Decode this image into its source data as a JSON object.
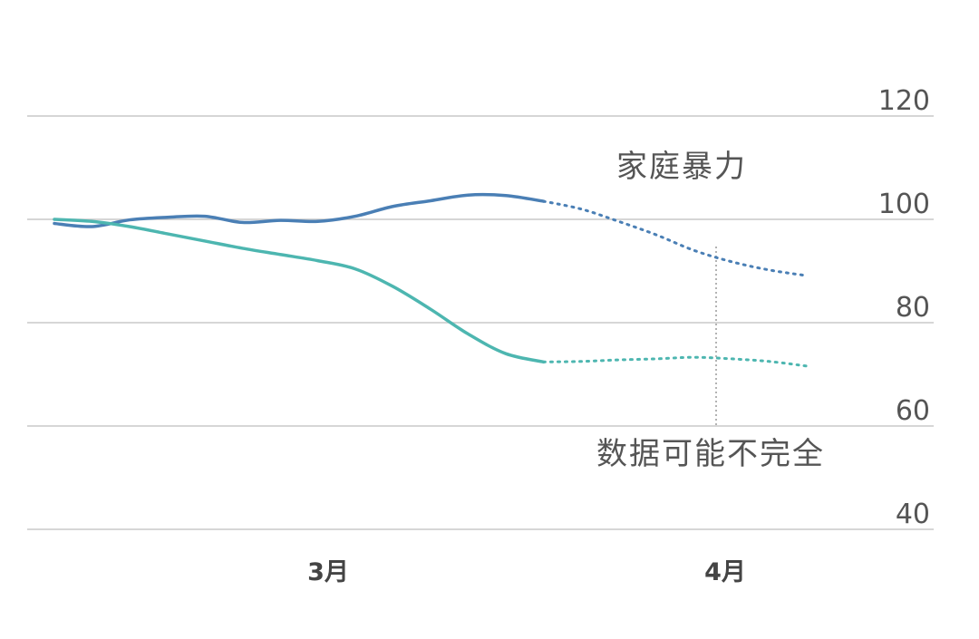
{
  "chart_data": {
    "type": "line",
    "yaxis_position": "right",
    "ylim": [
      40,
      120
    ],
    "yticks": [
      40,
      60,
      80,
      100,
      120
    ],
    "ytick_labels": [
      "40",
      "60",
      "80",
      "100",
      "120"
    ],
    "xticks": [
      "3月",
      "4月"
    ],
    "grid": "horizontal",
    "series": [
      {
        "name": "家庭暴力",
        "color": "#4a7fb5",
        "values": [
          [
            0,
            99.2
          ],
          [
            1,
            98.6
          ],
          [
            2,
            99.9
          ],
          [
            3,
            100.4
          ],
          [
            4,
            100.6
          ],
          [
            5,
            99.4
          ],
          [
            6,
            99.8
          ],
          [
            7,
            99.6
          ],
          [
            8,
            100.6
          ],
          [
            9,
            102.5
          ],
          [
            10,
            103.6
          ],
          [
            11,
            104.7
          ],
          [
            12,
            104.6
          ],
          [
            13,
            103.5
          ]
        ],
        "incomplete_values": [
          [
            13,
            103.5
          ],
          [
            14,
            102
          ],
          [
            15,
            99.6
          ],
          [
            16,
            97
          ],
          [
            17,
            94
          ],
          [
            18,
            91.8
          ],
          [
            19,
            90.2
          ],
          [
            20,
            89.1
          ]
        ]
      },
      {
        "name": "",
        "color": "#4db6b0",
        "values": [
          [
            0,
            100
          ],
          [
            1,
            99.6
          ],
          [
            2,
            98.6
          ],
          [
            3,
            97.2
          ],
          [
            4,
            95.8
          ],
          [
            5,
            94.4
          ],
          [
            6,
            93.2
          ],
          [
            7,
            92
          ],
          [
            8,
            90.4
          ],
          [
            9,
            87
          ],
          [
            10,
            82.6
          ],
          [
            11,
            77.8
          ],
          [
            12,
            74
          ],
          [
            13,
            72.4
          ]
        ],
        "incomplete_values": [
          [
            13,
            72.4
          ],
          [
            14,
            72.5
          ],
          [
            15,
            72.8
          ],
          [
            16,
            73
          ],
          [
            17,
            73.3
          ],
          [
            18,
            73
          ],
          [
            19,
            72.5
          ],
          [
            20,
            71.6
          ]
        ]
      }
    ],
    "annotations": {
      "series_label": "家庭暴力",
      "incomplete_note": "数据可能不完全"
    }
  }
}
